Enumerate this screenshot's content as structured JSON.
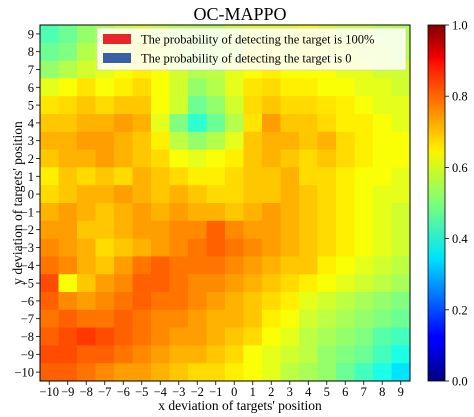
{
  "chart_data": {
    "type": "heatmap",
    "title": "OC-MAPPO",
    "xlabel": "x deviation of targets' position",
    "ylabel": "y deviation of targets' position",
    "x_ticks": [
      "−10",
      "−9",
      "−8",
      "−7",
      "−6",
      "−5",
      "−4",
      "−3",
      "−2",
      "−1",
      "0",
      "1",
      "2",
      "3",
      "4",
      "5",
      "6",
      "7",
      "8",
      "9"
    ],
    "y_ticks": [
      "9",
      "8",
      "7",
      "6",
      "5",
      "4",
      "3",
      "2",
      "1",
      "0",
      "−1",
      "−2",
      "−3",
      "−4",
      "−5",
      "−6",
      "−7",
      "−8",
      "−9",
      "−10"
    ],
    "colorbar": {
      "min": 0.0,
      "max": 1.0,
      "ticks": [
        "0.0",
        "0.2",
        "0.4",
        "0.6",
        "0.8",
        "1.0"
      ],
      "colormap": "jet"
    },
    "legend": {
      "placement": "top-right",
      "entries": [
        {
          "label": "The probability of detecting the target is 100%",
          "color": "#e8262a"
        },
        {
          "label": "The probability of detecting the target is 0",
          "color": "#3a5fa8"
        }
      ]
    },
    "grid": false,
    "values": [
      [
        0.45,
        0.48,
        0.52,
        0.55,
        0.58,
        0.6,
        0.58,
        0.56,
        0.55,
        0.55,
        0.58,
        0.6,
        0.6,
        0.6,
        0.62,
        0.6,
        0.58,
        0.58,
        0.56,
        0.55
      ],
      [
        0.48,
        0.5,
        0.55,
        0.58,
        0.6,
        0.62,
        0.6,
        0.58,
        0.55,
        0.55,
        0.58,
        0.62,
        0.62,
        0.6,
        0.62,
        0.6,
        0.6,
        0.58,
        0.58,
        0.56
      ],
      [
        0.52,
        0.55,
        0.58,
        0.6,
        0.62,
        0.64,
        0.62,
        0.58,
        0.55,
        0.56,
        0.6,
        0.62,
        0.64,
        0.62,
        0.62,
        0.62,
        0.6,
        0.6,
        0.58,
        0.58
      ],
      [
        0.6,
        0.62,
        0.65,
        0.62,
        0.64,
        0.66,
        0.62,
        0.58,
        0.52,
        0.55,
        0.6,
        0.65,
        0.66,
        0.64,
        0.64,
        0.62,
        0.62,
        0.6,
        0.6,
        0.58
      ],
      [
        0.65,
        0.66,
        0.68,
        0.66,
        0.68,
        0.68,
        0.62,
        0.58,
        0.48,
        0.52,
        0.58,
        0.66,
        0.68,
        0.66,
        0.66,
        0.65,
        0.64,
        0.62,
        0.6,
        0.6
      ],
      [
        0.68,
        0.68,
        0.7,
        0.7,
        0.72,
        0.7,
        0.6,
        0.5,
        0.42,
        0.48,
        0.55,
        0.65,
        0.72,
        0.68,
        0.68,
        0.66,
        0.64,
        0.64,
        0.62,
        0.6
      ],
      [
        0.7,
        0.7,
        0.72,
        0.72,
        0.7,
        0.68,
        0.64,
        0.56,
        0.52,
        0.55,
        0.6,
        0.68,
        0.7,
        0.7,
        0.68,
        0.7,
        0.66,
        0.64,
        0.62,
        0.62
      ],
      [
        0.68,
        0.7,
        0.7,
        0.72,
        0.7,
        0.68,
        0.66,
        0.62,
        0.6,
        0.62,
        0.64,
        0.68,
        0.7,
        0.68,
        0.66,
        0.68,
        0.66,
        0.64,
        0.62,
        0.62
      ],
      [
        0.64,
        0.68,
        0.66,
        0.68,
        0.66,
        0.7,
        0.68,
        0.66,
        0.64,
        0.64,
        0.66,
        0.68,
        0.68,
        0.7,
        0.66,
        0.66,
        0.64,
        0.62,
        0.62,
        0.6
      ],
      [
        0.66,
        0.68,
        0.7,
        0.7,
        0.72,
        0.7,
        0.68,
        0.7,
        0.68,
        0.66,
        0.66,
        0.68,
        0.68,
        0.7,
        0.68,
        0.66,
        0.64,
        0.62,
        0.6,
        0.6
      ],
      [
        0.7,
        0.72,
        0.7,
        0.68,
        0.7,
        0.72,
        0.7,
        0.72,
        0.7,
        0.7,
        0.68,
        0.7,
        0.72,
        0.7,
        0.68,
        0.66,
        0.64,
        0.62,
        0.6,
        0.58
      ],
      [
        0.72,
        0.72,
        0.68,
        0.68,
        0.7,
        0.72,
        0.72,
        0.74,
        0.74,
        0.78,
        0.74,
        0.72,
        0.72,
        0.7,
        0.68,
        0.66,
        0.64,
        0.62,
        0.6,
        0.58
      ],
      [
        0.74,
        0.72,
        0.7,
        0.66,
        0.68,
        0.7,
        0.72,
        0.74,
        0.76,
        0.78,
        0.76,
        0.74,
        0.72,
        0.7,
        0.68,
        0.66,
        0.64,
        0.62,
        0.6,
        0.58
      ],
      [
        0.76,
        0.74,
        0.7,
        0.68,
        0.72,
        0.76,
        0.78,
        0.76,
        0.76,
        0.76,
        0.74,
        0.72,
        0.7,
        0.68,
        0.68,
        0.64,
        0.62,
        0.6,
        0.58,
        0.56
      ],
      [
        0.8,
        0.62,
        0.68,
        0.72,
        0.74,
        0.78,
        0.78,
        0.76,
        0.74,
        0.74,
        0.72,
        0.7,
        0.68,
        0.66,
        0.64,
        0.62,
        0.6,
        0.58,
        0.56,
        0.54
      ],
      [
        0.78,
        0.74,
        0.72,
        0.74,
        0.76,
        0.78,
        0.76,
        0.76,
        0.74,
        0.72,
        0.7,
        0.68,
        0.66,
        0.64,
        0.6,
        0.58,
        0.56,
        0.54,
        0.52,
        0.5
      ],
      [
        0.76,
        0.78,
        0.76,
        0.76,
        0.78,
        0.76,
        0.74,
        0.74,
        0.72,
        0.7,
        0.7,
        0.68,
        0.64,
        0.62,
        0.58,
        0.56,
        0.54,
        0.52,
        0.5,
        0.48
      ],
      [
        0.78,
        0.8,
        0.82,
        0.8,
        0.78,
        0.76,
        0.74,
        0.72,
        0.72,
        0.7,
        0.68,
        0.66,
        0.62,
        0.6,
        0.56,
        0.54,
        0.52,
        0.5,
        0.46,
        0.44
      ],
      [
        0.8,
        0.8,
        0.78,
        0.78,
        0.76,
        0.74,
        0.72,
        0.7,
        0.7,
        0.68,
        0.66,
        0.62,
        0.6,
        0.58,
        0.56,
        0.52,
        0.5,
        0.48,
        0.44,
        0.4
      ],
      [
        0.78,
        0.78,
        0.76,
        0.74,
        0.72,
        0.72,
        0.7,
        0.68,
        0.66,
        0.66,
        0.64,
        0.62,
        0.6,
        0.56,
        0.54,
        0.52,
        0.48,
        0.44,
        0.4,
        0.35
      ]
    ]
  }
}
